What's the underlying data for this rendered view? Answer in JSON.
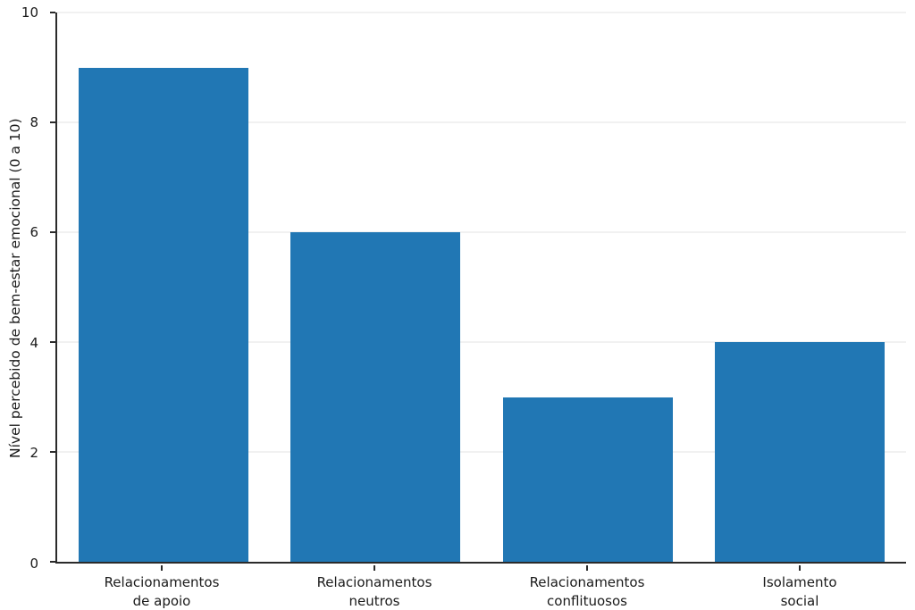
{
  "chart_data": {
    "type": "bar",
    "title": "",
    "xlabel": "",
    "ylabel": "Nível percebido de bem-estar emocional (0 a 10)",
    "categories": [
      "Relacionamentos\nde apoio",
      "Relacionamentos\nneutros",
      "Relacionamentos\nconflituosos",
      "Isolamento\nsocial"
    ],
    "values": [
      9,
      6,
      3,
      4
    ],
    "ylim": [
      0,
      10
    ],
    "yticks": [
      0,
      2,
      4,
      6,
      8,
      10
    ],
    "bar_color": "#2177b4",
    "grid": "horizontal-light",
    "grid_color": "#f1f1f1",
    "axis_color": "#2b2b2b",
    "text_color": "#1a1a1a",
    "background": "#ffffff",
    "legend": "none"
  }
}
